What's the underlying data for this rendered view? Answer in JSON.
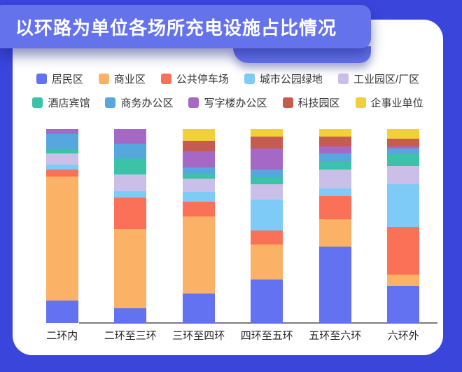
{
  "title": "以环路为单位各场所充电设施占比情况",
  "colors": {
    "background": "#3A45DC",
    "title_badge": "#6472EC",
    "card": "#FFFFFF",
    "axis_line": "#7C7C7C",
    "axis_label_text": "#262626",
    "legend_text": "#333333",
    "title_text": "#FFFFFF"
  },
  "chart_data": {
    "type": "bar",
    "stacked": true,
    "unit": "percent",
    "title": "以环路为单位各场所充电设施占比情况",
    "xlabel": "",
    "ylabel": "",
    "ylim": [
      0,
      100
    ],
    "grid": false,
    "y_axis_visible": false,
    "legend_position": "top",
    "categories": [
      "二环内",
      "二环至三环",
      "三环至四环",
      "四环至五环",
      "五环至六环",
      "六环外"
    ],
    "series": [
      {
        "name": "居民区",
        "color": "#6272F1",
        "values": [
          11.5,
          7.5,
          15,
          22.5,
          39.5,
          19
        ]
      },
      {
        "name": "商业区",
        "color": "#FCB266",
        "values": [
          64,
          41,
          40,
          18,
          14,
          6
        ]
      },
      {
        "name": "公共停车场",
        "color": "#FB7157",
        "values": [
          3.5,
          16,
          7.5,
          7,
          12,
          24.5
        ]
      },
      {
        "name": "城市公园绿地",
        "color": "#7ECBF8",
        "values": [
          2.5,
          3.5,
          5,
          16,
          4,
          22
        ]
      },
      {
        "name": "工业园区/厂区",
        "color": "#CABFE9",
        "values": [
          6,
          8.5,
          7,
          8,
          9.5,
          9.5
        ]
      },
      {
        "name": "酒店宾馆",
        "color": "#3AC3A6",
        "values": [
          2,
          8.5,
          2.5,
          3.5,
          4,
          6
        ]
      },
      {
        "name": "商务办公区",
        "color": "#57A7DF",
        "values": [
          8,
          7.5,
          3,
          4,
          4.5,
          3
        ]
      },
      {
        "name": "写字楼办公区",
        "color": "#A568C5",
        "values": [
          2.5,
          7.5,
          8.5,
          11,
          3.5,
          1
        ]
      },
      {
        "name": "科技园区",
        "color": "#C65B51",
        "values": [
          0,
          0,
          5.5,
          6,
          5,
          4
        ]
      },
      {
        "name": "企事业单位",
        "color": "#F1CF3D",
        "values": [
          0,
          0,
          6,
          4,
          4,
          5
        ]
      }
    ],
    "legend_rows": [
      [
        "居民区",
        "商业区",
        "公共停车场",
        "城市公园绿地",
        "工业园区/厂区"
      ],
      [
        "酒店宾馆",
        "商务办公区",
        "写字楼办公区",
        "科技园区",
        "企事业单位"
      ]
    ]
  }
}
